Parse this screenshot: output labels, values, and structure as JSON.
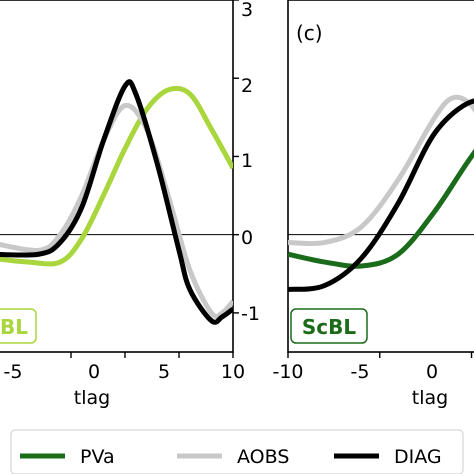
{
  "chart_data": [
    {
      "type": "line",
      "panel_label": "",
      "xlabel": "tlag",
      "xlim": [
        -12.5,
        10
      ],
      "ylim": [
        -1.5,
        3
      ],
      "xticks": [
        "-5",
        "0",
        "5",
        "10"
      ],
      "yticks_right": [
        "-1",
        "0",
        "1",
        "2",
        "3"
      ],
      "reference_line_y": 0,
      "regime_label": "BL",
      "regime_color": "#a8d63c",
      "series": [
        {
          "key": "a",
          "color": "#a8d63c",
          "x": [
            -12.5,
            -9,
            -6,
            -4,
            -2,
            0,
            2,
            4,
            6,
            8,
            10
          ],
          "y": [
            -0.3,
            -0.35,
            -0.35,
            -0.05,
            0.5,
            1.1,
            1.6,
            1.85,
            1.8,
            1.35,
            0.85
          ]
        },
        {
          "key": "aobs",
          "color": "#c8c8c8",
          "x": [
            -12.5,
            -8,
            -6,
            -4,
            -2,
            0,
            2,
            4,
            6,
            8,
            9,
            10
          ],
          "y": [
            -0.1,
            -0.2,
            0.0,
            0.5,
            1.2,
            1.65,
            1.35,
            0.5,
            -0.45,
            -1.0,
            -1.0,
            -0.85
          ]
        },
        {
          "key": "diag",
          "color": "#000000",
          "x": [
            -12.5,
            -8,
            -6,
            -4,
            -2,
            0,
            1,
            3,
            5,
            6,
            8,
            9,
            10
          ],
          "y": [
            -0.25,
            -0.25,
            -0.1,
            0.35,
            1.2,
            1.9,
            1.8,
            0.9,
            -0.2,
            -0.7,
            -1.1,
            -1.05,
            -0.95
          ]
        }
      ]
    },
    {
      "type": "line",
      "panel_label": "(c)",
      "xlabel": "tlag",
      "xlim": [
        -10,
        7
      ],
      "ylim": [
        -1.5,
        3
      ],
      "xticks": [
        "-10",
        "-5",
        "0"
      ],
      "reference_line_y": 0,
      "regime_label": "ScBL",
      "regime_color": "#1a6b1a",
      "series": [
        {
          "key": "pva",
          "color": "#1a6b1a",
          "x": [
            -10,
            -8,
            -6,
            -4,
            -2,
            0,
            2,
            4,
            7
          ],
          "y": [
            -0.25,
            -0.35,
            -0.4,
            -0.25,
            0.3,
            1.0,
            1.6,
            1.9,
            2.0
          ]
        },
        {
          "key": "aobs",
          "color": "#c8c8c8",
          "x": [
            -10,
            -8,
            -6,
            -4,
            -2,
            -1,
            0,
            1,
            2,
            3,
            7
          ],
          "y": [
            -0.1,
            -0.1,
            0.1,
            0.7,
            1.5,
            1.75,
            1.65,
            1.25,
            0.75,
            0.4,
            0.2
          ]
        },
        {
          "key": "diag",
          "color": "#000000",
          "x": [
            -10,
            -8,
            -6,
            -4,
            -2,
            0,
            1,
            2,
            3,
            7
          ],
          "y": [
            -0.7,
            -0.65,
            -0.3,
            0.4,
            1.3,
            1.7,
            1.55,
            1.1,
            0.7,
            0.3
          ]
        }
      ]
    }
  ],
  "legend": {
    "items": [
      {
        "label": "PVa",
        "color": "#1a6b1a"
      },
      {
        "label": "AOBS",
        "color": "#c8c8c8"
      },
      {
        "label": "DIAG",
        "color": "#000000"
      }
    ]
  }
}
